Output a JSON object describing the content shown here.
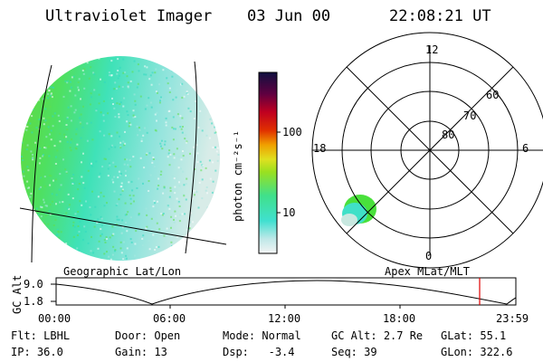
{
  "header": {
    "title": "Ultraviolet Imager",
    "date": "03 Jun 00",
    "time": "22:08:21 UT"
  },
  "colorbar": {
    "unit_label": "photon cm⁻²s⁻¹",
    "ticks": [
      "100",
      "10"
    ]
  },
  "polar": {
    "labels": {
      "top": "12",
      "right": "6",
      "left": "18",
      "bottom": "0"
    },
    "lat_labels": [
      "60",
      "70",
      "80"
    ]
  },
  "left_caption": "Geographic Lat/Lon",
  "right_caption": "Apex MLat/MLT",
  "altitude_plot": {
    "axis_label": "GC Alt",
    "y_ticks": [
      "9.0",
      "1.8"
    ],
    "x_ticks": [
      "00:00",
      "06:00",
      "12:00",
      "18:00",
      "23:59"
    ]
  },
  "info": {
    "row1": [
      {
        "label": "Flt:",
        "value": "LBHL"
      },
      {
        "label": "Door:",
        "value": "Open"
      },
      {
        "label": "Mode:",
        "value": "Normal"
      },
      {
        "label": "GC Alt:",
        "value": "2.7 Re"
      },
      {
        "label": "GLat:",
        "value": "55.1"
      }
    ],
    "row2": [
      {
        "label": "IP:",
        "value": "36.0"
      },
      {
        "label": "Gain:",
        "value": "13"
      },
      {
        "label": "Dsp:",
        "value": "-3.4"
      },
      {
        "label": "Seq:",
        "value": "39"
      },
      {
        "label": "GLon:",
        "value": "322.6"
      }
    ]
  },
  "colors": {
    "green": "#49e03b",
    "cyan": "#40e0c8",
    "pale": "#c8e8e0"
  }
}
